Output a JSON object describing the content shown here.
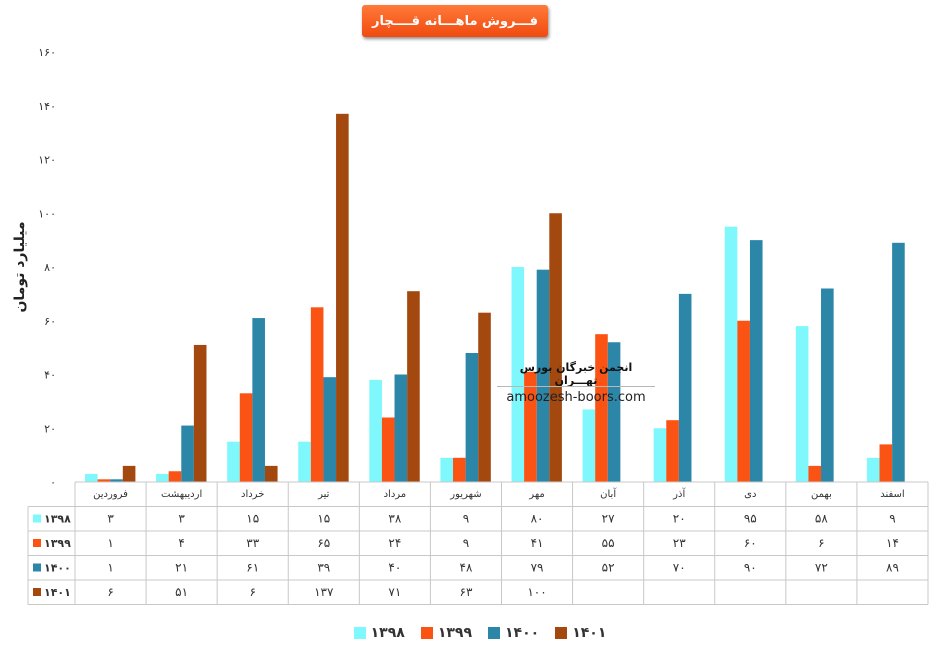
{
  "chart_data": {
    "type": "bar",
    "title": "فـــروش ماهـــانه قــــچار",
    "ylabel": "میلیارد تومان",
    "ylim": [
      0,
      160
    ],
    "yticks": [
      "۰",
      "۲۰",
      "۴۰",
      "۶۰",
      "۸۰",
      "۱۰۰",
      "۱۲۰",
      "۱۴۰",
      "۱۶۰"
    ],
    "categories": [
      "فروردین",
      "اردیبهشت",
      "خرداد",
      "تیر",
      "مرداد",
      "شهریور",
      "مهر",
      "آبان",
      "آذر",
      "دی",
      "بهمن",
      "اسفند"
    ],
    "series": [
      {
        "name": "۱۳۹۸",
        "color": "#7ef8fd",
        "values": [
          3,
          3,
          15,
          15,
          38,
          9,
          80,
          27,
          20,
          95,
          58,
          9
        ],
        "labels": [
          "۳",
          "۳",
          "۱۵",
          "۱۵",
          "۳۸",
          "۹",
          "۸۰",
          "۲۷",
          "۲۰",
          "۹۵",
          "۵۸",
          "۹"
        ]
      },
      {
        "name": "۱۳۹۹",
        "color": "#fb5314",
        "values": [
          1,
          4,
          33,
          65,
          24,
          9,
          41,
          55,
          23,
          60,
          6,
          14
        ],
        "labels": [
          "۱",
          "۴",
          "۳۳",
          "۶۵",
          "۲۴",
          "۹",
          "۴۱",
          "۵۵",
          "۲۳",
          "۶۰",
          "۶",
          "۱۴"
        ]
      },
      {
        "name": "۱۴۰۰",
        "color": "#2b86a8",
        "values": [
          1,
          21,
          61,
          39,
          40,
          48,
          79,
          52,
          70,
          90,
          72,
          89
        ],
        "labels": [
          "۱",
          "۲۱",
          "۶۱",
          "۳۹",
          "۴۰",
          "۴۸",
          "۷۹",
          "۵۲",
          "۷۰",
          "۹۰",
          "۷۲",
          "۸۹"
        ]
      },
      {
        "name": "۱۴۰۱",
        "color": "#a3480f",
        "values": [
          6,
          51,
          6,
          137,
          71,
          63,
          100,
          null,
          null,
          null,
          null,
          null
        ],
        "labels": [
          "۶",
          "۵۱",
          "۶",
          "۱۳۷",
          "۷۱",
          "۶۳",
          "۱۰۰",
          "",
          "",
          "",
          "",
          ""
        ]
      }
    ]
  },
  "watermark": {
    "line1": "انجمن خبرگان بورس تهـــران",
    "line2": "amoozesh-boors.com"
  }
}
